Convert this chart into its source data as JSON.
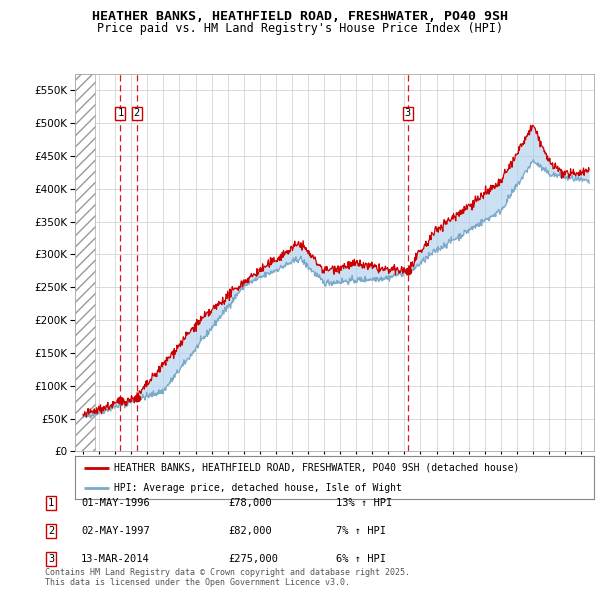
{
  "title1": "HEATHER BANKS, HEATHFIELD ROAD, FRESHWATER, PO40 9SH",
  "title2": "Price paid vs. HM Land Registry's House Price Index (HPI)",
  "legend_line1": "HEATHER BANKS, HEATHFIELD ROAD, FRESHWATER, PO40 9SH (detached house)",
  "legend_line2": "HPI: Average price, detached house, Isle of Wight",
  "sale_points": [
    {
      "label": "1",
      "date_x": 1996.33,
      "price": 78000
    },
    {
      "label": "2",
      "date_x": 1997.33,
      "price": 82000
    },
    {
      "label": "3",
      "date_x": 2014.2,
      "price": 275000
    }
  ],
  "sale_info": [
    {
      "num": "1",
      "date": "01-MAY-1996",
      "price": "£78,000",
      "change": "13% ↑ HPI"
    },
    {
      "num": "2",
      "date": "02-MAY-1997",
      "price": "£82,000",
      "change": "7% ↑ HPI"
    },
    {
      "num": "3",
      "date": "13-MAR-2014",
      "price": "£275,000",
      "change": "6% ↑ HPI"
    }
  ],
  "footer": "Contains HM Land Registry data © Crown copyright and database right 2025.\nThis data is licensed under the Open Government Licence v3.0.",
  "hatch_region_end": 1994.75,
  "xmin": 1993.5,
  "xmax": 2025.8,
  "ymin": 0,
  "ymax": 575000,
  "red_color": "#cc0000",
  "blue_color": "#aaccee",
  "blue_line_color": "#7aaac8"
}
